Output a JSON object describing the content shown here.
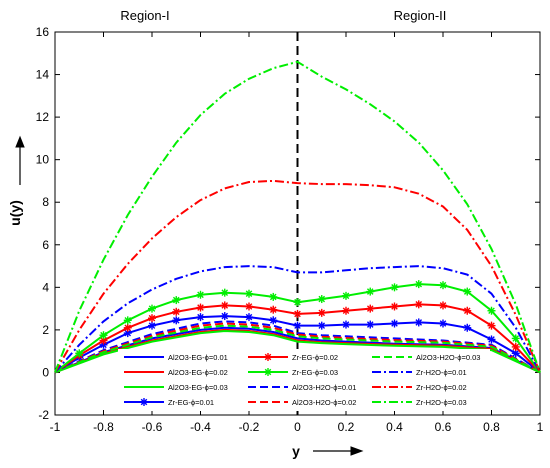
{
  "chart_data": {
    "type": "line",
    "title": "",
    "xlabel": "y",
    "ylabel": "u(y)",
    "xlim": [
      -1,
      1
    ],
    "ylim": [
      -2,
      16
    ],
    "xticks": [
      "-1",
      "-0.8",
      "-0.6",
      "-0.4",
      "-0.2",
      "0",
      "0.2",
      "0.4",
      "0.6",
      "0.8",
      "1"
    ],
    "yticks": [
      "-2",
      "0",
      "2",
      "4",
      "6",
      "8",
      "10",
      "12",
      "14",
      "16"
    ],
    "region_labels": [
      "Region-I",
      "Region-II"
    ],
    "interface_x": 0,
    "grid": false,
    "legend_position": "bottom-center, inside, 3 columns",
    "series": [
      {
        "name": "Al2O3-EG-ϕ=0.01",
        "color": "#0000ff",
        "dash": "solid",
        "marker": false,
        "x": [
          -1,
          -0.8,
          -0.6,
          -0.4,
          -0.3,
          -0.2,
          -0.1,
          0,
          0.1,
          0.2,
          0.4,
          0.6,
          0.8,
          1
        ],
        "y": [
          0,
          0.95,
          1.6,
          2.0,
          2.1,
          2.05,
          1.9,
          1.6,
          1.5,
          1.45,
          1.35,
          1.3,
          1.15,
          0
        ]
      },
      {
        "name": "Al2O3-EG-ϕ=0.02",
        "color": "#ff0000",
        "dash": "solid",
        "marker": false,
        "x": [
          -1,
          -0.8,
          -0.6,
          -0.4,
          -0.3,
          -0.2,
          -0.1,
          0,
          0.1,
          0.2,
          0.4,
          0.6,
          0.8,
          1
        ],
        "y": [
          0,
          0.9,
          1.5,
          1.9,
          2.0,
          1.95,
          1.8,
          1.5,
          1.42,
          1.38,
          1.3,
          1.25,
          1.1,
          0
        ]
      },
      {
        "name": "Al2O3-EG-ϕ=0.03",
        "color": "#00ee00",
        "dash": "solid",
        "marker": false,
        "x": [
          -1,
          -0.8,
          -0.6,
          -0.4,
          -0.3,
          -0.2,
          -0.1,
          0,
          0.1,
          0.2,
          0.4,
          0.6,
          0.8,
          1
        ],
        "y": [
          0,
          0.85,
          1.45,
          1.85,
          1.95,
          1.9,
          1.75,
          1.45,
          1.38,
          1.33,
          1.25,
          1.2,
          1.05,
          0
        ]
      },
      {
        "name": "Zr-EG-ϕ=0.01",
        "color": "#0000ff",
        "dash": "solid",
        "marker": true,
        "x": [
          -1,
          -0.9,
          -0.8,
          -0.7,
          -0.6,
          -0.5,
          -0.4,
          -0.3,
          -0.2,
          -0.1,
          0,
          0.1,
          0.2,
          0.3,
          0.4,
          0.5,
          0.6,
          0.7,
          0.8,
          0.9,
          1
        ],
        "y": [
          0,
          0.7,
          1.3,
          1.85,
          2.2,
          2.45,
          2.6,
          2.65,
          2.6,
          2.45,
          2.2,
          2.2,
          2.25,
          2.25,
          2.3,
          2.35,
          2.3,
          2.1,
          1.55,
          0.9,
          0
        ]
      },
      {
        "name": "Zr-EG-ϕ=0.02",
        "color": "#ff0000",
        "dash": "solid",
        "marker": true,
        "x": [
          -1,
          -0.9,
          -0.8,
          -0.7,
          -0.6,
          -0.5,
          -0.4,
          -0.3,
          -0.2,
          -0.1,
          0,
          0.1,
          0.2,
          0.3,
          0.4,
          0.5,
          0.6,
          0.7,
          0.8,
          0.9,
          1
        ],
        "y": [
          0,
          0.8,
          1.5,
          2.1,
          2.55,
          2.85,
          3.05,
          3.15,
          3.1,
          2.95,
          2.75,
          2.8,
          2.9,
          3.0,
          3.1,
          3.2,
          3.15,
          2.9,
          2.2,
          1.2,
          0
        ]
      },
      {
        "name": "Zr-EG-ϕ=0.03",
        "color": "#00ee00",
        "dash": "solid",
        "marker": true,
        "x": [
          -1,
          -0.9,
          -0.8,
          -0.7,
          -0.6,
          -0.5,
          -0.4,
          -0.3,
          -0.2,
          -0.1,
          0,
          0.1,
          0.2,
          0.3,
          0.4,
          0.5,
          0.6,
          0.7,
          0.8,
          0.9,
          1
        ],
        "y": [
          0,
          0.9,
          1.75,
          2.45,
          3.0,
          3.4,
          3.65,
          3.75,
          3.7,
          3.55,
          3.3,
          3.45,
          3.6,
          3.8,
          4.0,
          4.15,
          4.1,
          3.8,
          2.9,
          1.6,
          0
        ]
      },
      {
        "name": "Al2O3-H2O-ϕ=0.01",
        "color": "#0000ff",
        "dash": "dash",
        "marker": false,
        "x": [
          -1,
          -0.8,
          -0.6,
          -0.4,
          -0.3,
          -0.2,
          -0.1,
          0,
          0.1,
          0.2,
          0.4,
          0.6,
          0.8,
          1
        ],
        "y": [
          0,
          1.05,
          1.8,
          2.3,
          2.4,
          2.35,
          2.2,
          1.85,
          1.75,
          1.7,
          1.6,
          1.5,
          1.3,
          0
        ]
      },
      {
        "name": "Al2O3-H2O-ϕ=0.02",
        "color": "#ff0000",
        "dash": "dash",
        "marker": false,
        "x": [
          -1,
          -0.8,
          -0.6,
          -0.4,
          -0.3,
          -0.2,
          -0.1,
          0,
          0.1,
          0.2,
          0.4,
          0.6,
          0.8,
          1
        ],
        "y": [
          0,
          1.0,
          1.72,
          2.2,
          2.3,
          2.25,
          2.1,
          1.78,
          1.68,
          1.62,
          1.52,
          1.45,
          1.25,
          0
        ]
      },
      {
        "name": "Al2O3-H2O-ϕ=0.03",
        "color": "#00ee00",
        "dash": "dash",
        "marker": false,
        "x": [
          -1,
          -0.8,
          -0.6,
          -0.4,
          -0.3,
          -0.2,
          -0.1,
          0,
          0.1,
          0.2,
          0.4,
          0.6,
          0.8,
          1
        ],
        "y": [
          0,
          0.95,
          1.65,
          2.1,
          2.2,
          2.15,
          2.0,
          1.7,
          1.6,
          1.55,
          1.45,
          1.4,
          1.2,
          0
        ]
      },
      {
        "name": "Zr-H2O-ϕ=0.01",
        "color": "#0000ff",
        "dash": "dashdot",
        "marker": false,
        "x": [
          -1,
          -0.9,
          -0.8,
          -0.7,
          -0.6,
          -0.5,
          -0.4,
          -0.3,
          -0.2,
          -0.1,
          0,
          0.1,
          0.2,
          0.3,
          0.4,
          0.5,
          0.6,
          0.7,
          0.8,
          0.9,
          1
        ],
        "y": [
          0,
          1.3,
          2.4,
          3.25,
          3.9,
          4.4,
          4.75,
          4.95,
          5.0,
          4.95,
          4.7,
          4.7,
          4.8,
          4.9,
          4.95,
          5.0,
          4.9,
          4.6,
          3.7,
          2.1,
          0
        ]
      },
      {
        "name": "Zr-H2O-ϕ=0.02",
        "color": "#ff0000",
        "dash": "dashdot",
        "marker": false,
        "x": [
          -1,
          -0.9,
          -0.8,
          -0.7,
          -0.6,
          -0.5,
          -0.4,
          -0.3,
          -0.2,
          -0.1,
          0,
          0.1,
          0.2,
          0.3,
          0.4,
          0.5,
          0.6,
          0.7,
          0.8,
          0.9,
          1
        ],
        "y": [
          0,
          2.0,
          3.7,
          5.1,
          6.3,
          7.3,
          8.1,
          8.65,
          8.95,
          9.0,
          8.9,
          8.85,
          8.85,
          8.8,
          8.7,
          8.4,
          7.8,
          6.7,
          5.0,
          2.7,
          0
        ]
      },
      {
        "name": "Zr-H2O-ϕ=0.03",
        "color": "#00ee00",
        "dash": "dashdot",
        "marker": false,
        "x": [
          -1,
          -0.9,
          -0.8,
          -0.7,
          -0.6,
          -0.5,
          -0.4,
          -0.3,
          -0.2,
          -0.1,
          0,
          0.1,
          0.2,
          0.3,
          0.4,
          0.5,
          0.6,
          0.7,
          0.8,
          0.9,
          1
        ],
        "y": [
          0,
          2.9,
          5.3,
          7.4,
          9.2,
          10.8,
          12.1,
          13.1,
          13.8,
          14.3,
          14.6,
          13.9,
          13.3,
          12.6,
          11.8,
          10.8,
          9.5,
          7.9,
          5.8,
          3.2,
          0
        ]
      }
    ]
  }
}
